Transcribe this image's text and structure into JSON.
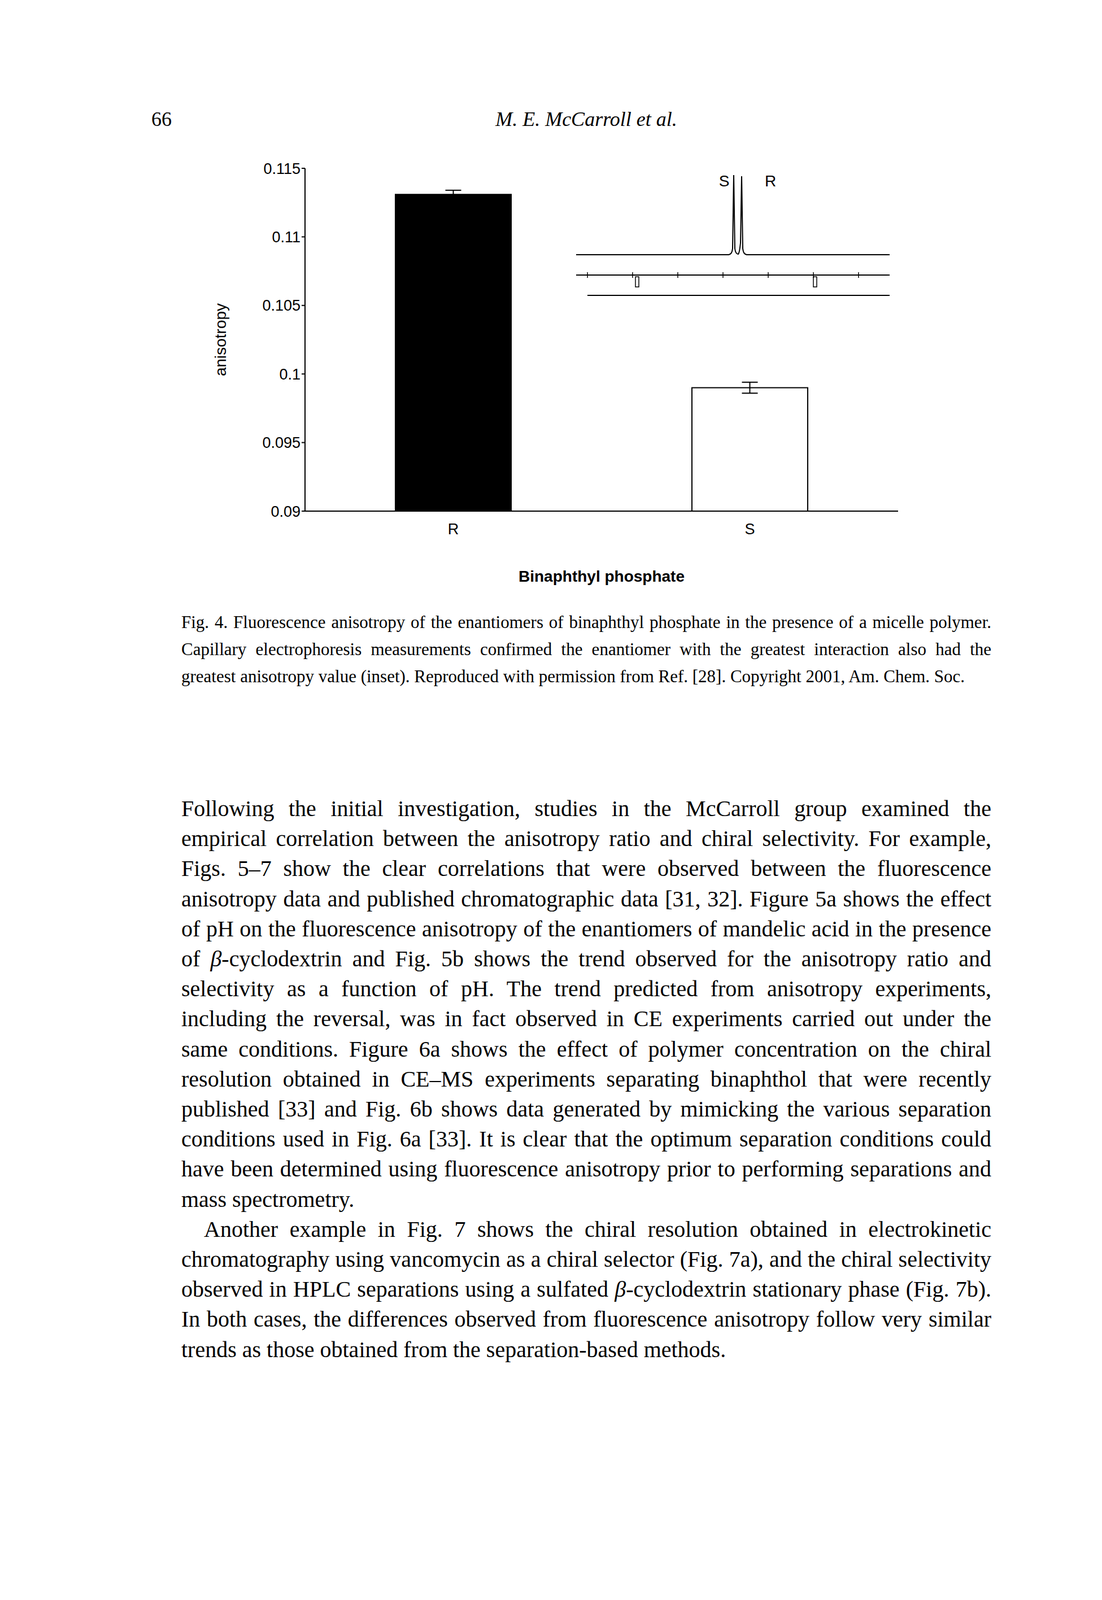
{
  "header": {
    "page": "66",
    "running_title": "M. E. McCarroll et al."
  },
  "chart_data": {
    "type": "bar",
    "categories": [
      "R",
      "S"
    ],
    "values": [
      0.1131,
      0.099
    ],
    "errors": [
      0.0003,
      0.0004
    ],
    "colors": [
      "#000000",
      "#ffffff"
    ],
    "ylim": [
      0.09,
      0.115
    ],
    "yticks": [
      0.09,
      0.095,
      0.1,
      0.105,
      0.11,
      0.115
    ],
    "y_label": "anisotropy",
    "x_label": "Binaphthyl phosphate",
    "grid": false,
    "inset": {
      "peak_labels": [
        "S",
        "R"
      ]
    }
  },
  "caption": "Fig. 4. Fluorescence anisotropy of the enantiomers of binaphthyl phosphate in the presence of a micelle polymer. Capillary electrophoresis measurements confirmed the enantiomer with the greatest interaction also had the greatest anisotropy value (inset). Reproduced with permission from Ref. [28]. Copyright 2001, Am. Chem. Soc.",
  "paragraphs": [
    "Following the initial investigation, studies in the McCarroll group examined the empirical correlation between the anisotropy ratio and chiral selectivity. For example, Figs. 5–7 show the clear correlations that were observed between the fluorescence anisotropy data and published chromatographic data [31, 32]. Figure 5a shows the effect of pH on the fluorescence anisotropy of the enantiomers of mandelic acid in the presence of β-cyclodextrin and Fig. 5b shows the trend observed for the anisotropy ratio and selectivity as a function of pH. The trend predicted from anisotropy experiments, including the reversal, was in fact observed in CE experiments carried out under the same conditions. Figure 6a shows the effect of polymer concentration on the chiral resolution obtained in CE–MS experiments separating binaphthol that were recently published [33] and Fig. 6b shows data generated by mimicking the various separation conditions used in Fig. 6a [33]. It is clear that the optimum separation conditions could have been determined using fluorescence anisotropy prior to performing separations and mass spectrometry.",
    "Another example in Fig. 7 shows the chiral resolution obtained in electrokinetic chromatography using vancomycin as a chiral selector (Fig. 7a), and the chiral selectivity observed in HPLC separations using a sulfated β-cyclodextrin stationary phase (Fig. 7b). In both cases, the differences observed from fluorescence anisotropy follow very similar trends as those obtained from the separation-based methods."
  ]
}
